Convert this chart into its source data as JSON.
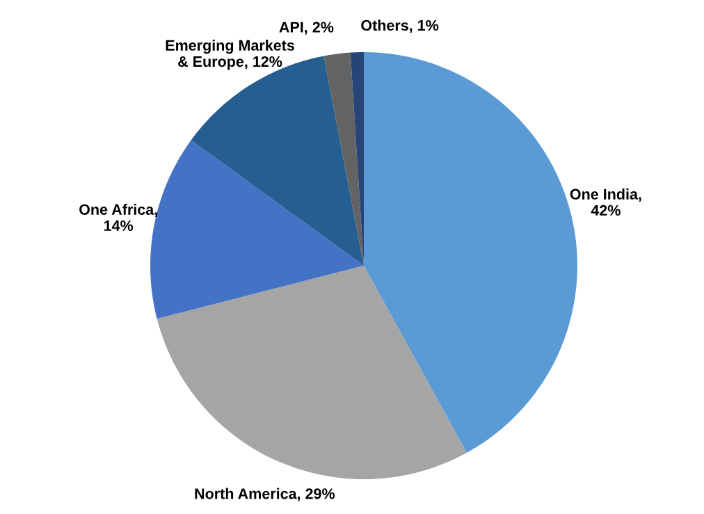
{
  "chart_data": {
    "type": "pie",
    "categories": [
      "One India, 42%",
      "North America, 29%",
      "One Africa, 14%",
      "Emerging Markets & Europe, 12%",
      "API, 2%",
      "Others, 1%"
    ],
    "values": [
      42,
      29,
      14,
      12,
      2,
      1
    ],
    "colors": [
      "#5b9bd5",
      "#a5a5a5",
      "#4472c4",
      "#255e91",
      "#636363",
      "#264478"
    ]
  }
}
